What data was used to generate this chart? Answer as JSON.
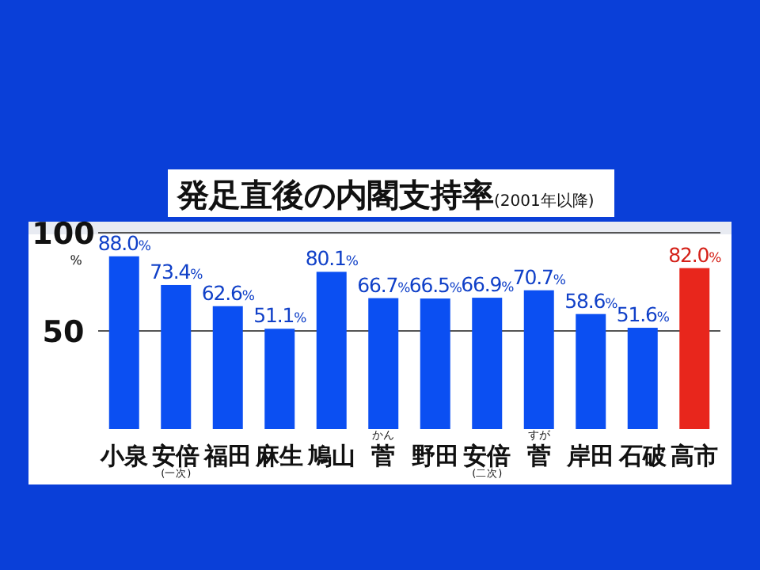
{
  "chart_data": {
    "type": "bar",
    "title": "発足直後の内閣支持率",
    "subtitle": "(2001年以降)",
    "ylabel": "%",
    "categories": [
      "小泉",
      "安倍\n(一次)",
      "福田",
      "麻生",
      "鳩山",
      "かん菅",
      "野田",
      "安倍\n(二次)",
      "すが菅",
      "岸田",
      "石破",
      "高市"
    ],
    "values": [
      88.0,
      73.4,
      62.6,
      51.1,
      80.1,
      66.7,
      66.5,
      66.9,
      70.7,
      58.6,
      51.6,
      82.0
    ],
    "colors": [
      "#0b4ff2",
      "#0b4ff2",
      "#0b4ff2",
      "#0b4ff2",
      "#0b4ff2",
      "#0b4ff2",
      "#0b4ff2",
      "#0b4ff2",
      "#0b4ff2",
      "#0b4ff2",
      "#0b4ff2",
      "#e8261c"
    ],
    "value_labels": [
      "88.0%",
      "73.4%",
      "62.6%",
      "51.1%",
      "80.1%",
      "66.7%",
      "66.5%",
      "66.9%",
      "70.7%",
      "58.6%",
      "51.6%",
      "82.0%"
    ],
    "ylim": [
      0,
      100
    ],
    "yticks": [
      50,
      100
    ],
    "grid": "y"
  }
}
